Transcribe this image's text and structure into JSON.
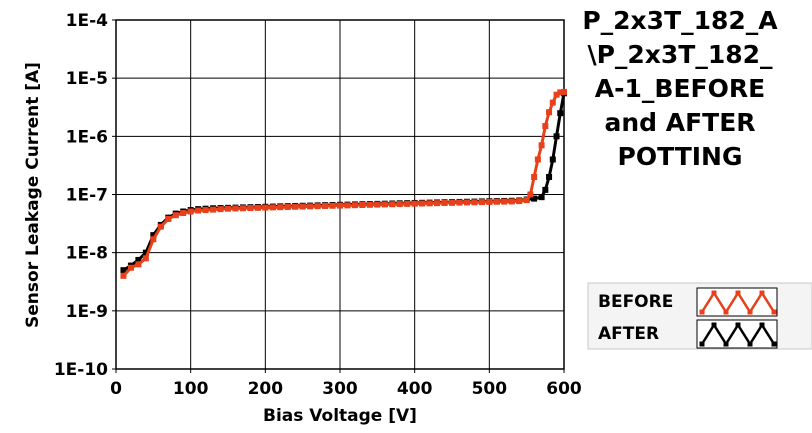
{
  "chart_data": {
    "type": "line",
    "title_lines": [
      "P_2x3T_182_A",
      "\\P_2x3T_182_",
      "A-1_BEFORE",
      "and AFTER",
      "POTTING"
    ],
    "xlabel": "Bias Voltage [V]",
    "ylabel": "Sensor Leakage Current [A]",
    "xlim": [
      0,
      600
    ],
    "ylim": [
      1e-10,
      0.0001
    ],
    "yscale": "log",
    "x_ticks": [
      0,
      100,
      200,
      300,
      400,
      500,
      600
    ],
    "x_tick_labels": [
      "0",
      "100",
      "200",
      "300",
      "400",
      "500",
      "600"
    ],
    "y_ticks": [
      0.0001,
      1e-05,
      1e-06,
      1e-07,
      1e-08,
      1e-09,
      1e-10
    ],
    "y_tick_labels": [
      "1E-4",
      "1E-5",
      "1E-6",
      "1E-7",
      "1E-8",
      "1E-9",
      "1E-10"
    ],
    "grid": true,
    "legend_position": "right",
    "series": [
      {
        "name": "BEFORE",
        "color": "#e8401a",
        "points": [
          [
            10,
            4e-09
          ],
          [
            20,
            5.5e-09
          ],
          [
            30,
            6.3e-09
          ],
          [
            40,
            8e-09
          ],
          [
            50,
            1.7e-08
          ],
          [
            60,
            2.8e-08
          ],
          [
            70,
            3.8e-08
          ],
          [
            80,
            4.4e-08
          ],
          [
            90,
            4.8e-08
          ],
          [
            100,
            5.1e-08
          ],
          [
            110,
            5.3e-08
          ],
          [
            120,
            5.4e-08
          ],
          [
            130,
            5.5e-08
          ],
          [
            140,
            5.6e-08
          ],
          [
            150,
            5.7e-08
          ],
          [
            160,
            5.75e-08
          ],
          [
            170,
            5.8e-08
          ],
          [
            180,
            5.85e-08
          ],
          [
            190,
            5.9e-08
          ],
          [
            200,
            5.95e-08
          ],
          [
            210,
            6e-08
          ],
          [
            220,
            6.05e-08
          ],
          [
            230,
            6.1e-08
          ],
          [
            240,
            6.15e-08
          ],
          [
            250,
            6.2e-08
          ],
          [
            260,
            6.25e-08
          ],
          [
            270,
            6.3e-08
          ],
          [
            280,
            6.35e-08
          ],
          [
            290,
            6.4e-08
          ],
          [
            300,
            6.45e-08
          ],
          [
            310,
            6.5e-08
          ],
          [
            320,
            6.55e-08
          ],
          [
            330,
            6.6e-08
          ],
          [
            340,
            6.65e-08
          ],
          [
            350,
            6.7e-08
          ],
          [
            360,
            6.75e-08
          ],
          [
            370,
            6.8e-08
          ],
          [
            380,
            6.85e-08
          ],
          [
            390,
            6.9e-08
          ],
          [
            400,
            6.95e-08
          ],
          [
            410,
            7e-08
          ],
          [
            420,
            7.05e-08
          ],
          [
            430,
            7.1e-08
          ],
          [
            440,
            7.15e-08
          ],
          [
            450,
            7.2e-08
          ],
          [
            460,
            7.25e-08
          ],
          [
            470,
            7.3e-08
          ],
          [
            480,
            7.35e-08
          ],
          [
            490,
            7.4e-08
          ],
          [
            500,
            7.45e-08
          ],
          [
            510,
            7.5e-08
          ],
          [
            520,
            7.55e-08
          ],
          [
            530,
            7.6e-08
          ],
          [
            540,
            7.7e-08
          ],
          [
            550,
            8e-08
          ],
          [
            555,
            1e-07
          ],
          [
            560,
            2e-07
          ],
          [
            565,
            4e-07
          ],
          [
            570,
            7e-07
          ],
          [
            575,
            1.5e-06
          ],
          [
            580,
            2.6e-06
          ],
          [
            585,
            3.8e-06
          ],
          [
            590,
            5.2e-06
          ],
          [
            595,
            5.7e-06
          ],
          [
            600,
            5.8e-06
          ]
        ]
      },
      {
        "name": "AFTER",
        "color": "#000000",
        "points": [
          [
            10,
            5e-09
          ],
          [
            20,
            6e-09
          ],
          [
            30,
            7.5e-09
          ],
          [
            40,
            1e-08
          ],
          [
            50,
            2e-08
          ],
          [
            60,
            3e-08
          ],
          [
            70,
            4e-08
          ],
          [
            80,
            4.7e-08
          ],
          [
            90,
            5.1e-08
          ],
          [
            100,
            5.4e-08
          ],
          [
            110,
            5.6e-08
          ],
          [
            120,
            5.7e-08
          ],
          [
            130,
            5.8e-08
          ],
          [
            140,
            5.85e-08
          ],
          [
            150,
            5.9e-08
          ],
          [
            160,
            5.95e-08
          ],
          [
            170,
            6e-08
          ],
          [
            180,
            6.05e-08
          ],
          [
            190,
            6.1e-08
          ],
          [
            200,
            6.15e-08
          ],
          [
            210,
            6.2e-08
          ],
          [
            220,
            6.25e-08
          ],
          [
            230,
            6.3e-08
          ],
          [
            240,
            6.35e-08
          ],
          [
            250,
            6.4e-08
          ],
          [
            260,
            6.45e-08
          ],
          [
            270,
            6.5e-08
          ],
          [
            280,
            6.55e-08
          ],
          [
            290,
            6.6e-08
          ],
          [
            300,
            6.65e-08
          ],
          [
            310,
            6.7e-08
          ],
          [
            320,
            6.75e-08
          ],
          [
            330,
            6.8e-08
          ],
          [
            340,
            6.85e-08
          ],
          [
            350,
            6.9e-08
          ],
          [
            360,
            6.95e-08
          ],
          [
            370,
            7e-08
          ],
          [
            380,
            7.05e-08
          ],
          [
            390,
            7.1e-08
          ],
          [
            400,
            7.15e-08
          ],
          [
            410,
            7.2e-08
          ],
          [
            420,
            7.25e-08
          ],
          [
            430,
            7.3e-08
          ],
          [
            440,
            7.35e-08
          ],
          [
            450,
            7.4e-08
          ],
          [
            460,
            7.45e-08
          ],
          [
            470,
            7.5e-08
          ],
          [
            480,
            7.55e-08
          ],
          [
            490,
            7.6e-08
          ],
          [
            500,
            7.65e-08
          ],
          [
            510,
            7.7e-08
          ],
          [
            520,
            7.75e-08
          ],
          [
            530,
            7.8e-08
          ],
          [
            540,
            7.9e-08
          ],
          [
            550,
            8.2e-08
          ],
          [
            560,
            8.5e-08
          ],
          [
            570,
            9e-08
          ],
          [
            575,
            1.2e-07
          ],
          [
            580,
            2e-07
          ],
          [
            585,
            4e-07
          ],
          [
            590,
            1e-06
          ],
          [
            595,
            2.5e-06
          ],
          [
            600,
            5.5e-06
          ]
        ]
      }
    ]
  }
}
